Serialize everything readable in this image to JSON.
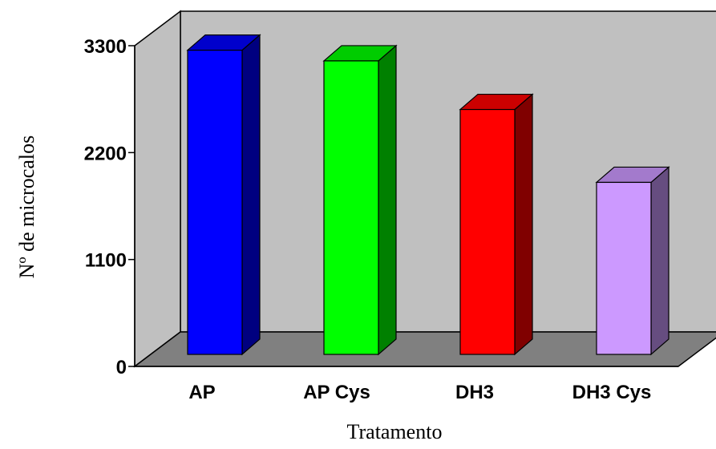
{
  "chart_data": {
    "type": "bar",
    "three_d": true,
    "title": "",
    "xlabel": "Tratamento",
    "ylabel": "Nº de microcalos",
    "categories": [
      "AP",
      "AP Cys",
      "DH3",
      "DH3 Cys"
    ],
    "values": [
      3130,
      3020,
      2520,
      1770
    ],
    "ylim": [
      0,
      3300
    ],
    "yticks": [
      0,
      1100,
      2200,
      3300
    ],
    "ytick_labels": [
      "0",
      "1100",
      "2200",
      "3300"
    ],
    "grid": false,
    "legend": "none",
    "colors": {
      "wall": "#c0c0c0",
      "floor": "#808080",
      "bars": [
        {
          "front": "#0000ff",
          "side": "#000080",
          "top": "#0000cc"
        },
        {
          "front": "#00ff00",
          "side": "#008000",
          "top": "#00cc00"
        },
        {
          "front": "#ff0000",
          "side": "#800000",
          "top": "#cc0000"
        },
        {
          "front": "#cc99ff",
          "side": "#664d80",
          "top": "#a37acc"
        }
      ]
    }
  }
}
